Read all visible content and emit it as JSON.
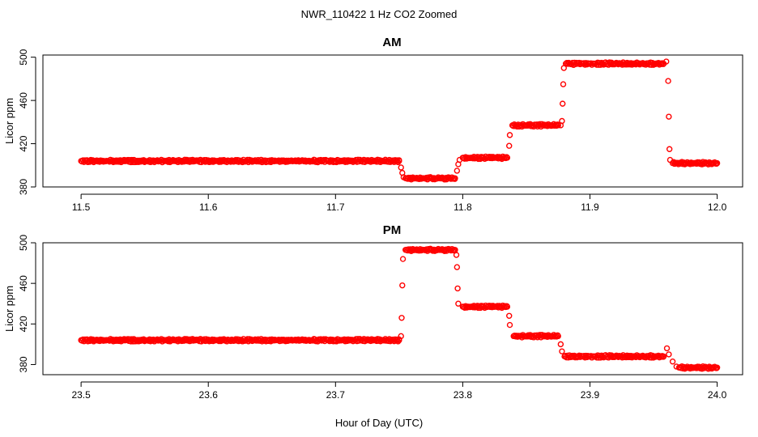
{
  "figure": {
    "suptitle": "NWR_110422  1 Hz CO2 Zoomed",
    "xlabel": "Hour of Day (UTC)"
  },
  "chart_data": [
    {
      "type": "scatter",
      "title": "AM",
      "ylabel": "Licor ppm",
      "xlim": [
        11.47,
        12.02
      ],
      "ylim": [
        380,
        502
      ],
      "xticks": [
        11.5,
        11.6,
        11.7,
        11.8,
        11.9,
        12.0
      ],
      "xtick_labels": [
        "11.5",
        "11.6",
        "11.7",
        "11.8",
        "11.9",
        "12.0"
      ],
      "yticks": [
        380,
        420,
        460,
        500
      ],
      "ytick_labels": [
        "380",
        "420",
        "460",
        "500"
      ],
      "marker_color": "#ff0000",
      "series": [
        {
          "name": "CO2",
          "points": [
            [
              11.5,
              404
            ],
            [
              11.51,
              404
            ],
            [
              11.52,
              404
            ],
            [
              11.53,
              404
            ],
            [
              11.54,
              404
            ],
            [
              11.55,
              404
            ],
            [
              11.56,
              404
            ],
            [
              11.57,
              404
            ],
            [
              11.58,
              404
            ],
            [
              11.59,
              404
            ],
            [
              11.6,
              404
            ],
            [
              11.61,
              404
            ],
            [
              11.62,
              404
            ],
            [
              11.63,
              404
            ],
            [
              11.64,
              404
            ],
            [
              11.65,
              404
            ],
            [
              11.66,
              404
            ],
            [
              11.67,
              404
            ],
            [
              11.68,
              404
            ],
            [
              11.69,
              404
            ],
            [
              11.7,
              404
            ],
            [
              11.71,
              404
            ],
            [
              11.72,
              404
            ],
            [
              11.73,
              404
            ],
            [
              11.74,
              404
            ],
            [
              11.75,
              404
            ],
            [
              11.7515,
              398
            ],
            [
              11.7525,
              393
            ],
            [
              11.7535,
              389
            ],
            [
              11.755,
              388
            ],
            [
              11.76,
              388
            ],
            [
              11.765,
              388
            ],
            [
              11.77,
              388
            ],
            [
              11.775,
              388
            ],
            [
              11.78,
              388
            ],
            [
              11.785,
              388
            ],
            [
              11.79,
              388
            ],
            [
              11.794,
              388
            ],
            [
              11.7955,
              395
            ],
            [
              11.7965,
              401
            ],
            [
              11.7975,
              405
            ],
            [
              11.8,
              407
            ],
            [
              11.805,
              407
            ],
            [
              11.81,
              407
            ],
            [
              11.815,
              407
            ],
            [
              11.82,
              407
            ],
            [
              11.825,
              407
            ],
            [
              11.83,
              407
            ],
            [
              11.835,
              407
            ],
            [
              11.8365,
              418
            ],
            [
              11.837,
              428
            ],
            [
              11.839,
              437
            ],
            [
              11.845,
              437
            ],
            [
              11.85,
              437
            ],
            [
              11.855,
              437
            ],
            [
              11.86,
              437
            ],
            [
              11.865,
              437
            ],
            [
              11.87,
              437
            ],
            [
              11.875,
              437
            ],
            [
              11.877,
              437
            ],
            [
              11.878,
              441
            ],
            [
              11.8785,
              457
            ],
            [
              11.879,
              475
            ],
            [
              11.8795,
              490
            ],
            [
              11.881,
              494
            ],
            [
              11.89,
              494
            ],
            [
              11.9,
              494
            ],
            [
              11.91,
              494
            ],
            [
              11.92,
              494
            ],
            [
              11.93,
              494
            ],
            [
              11.94,
              494
            ],
            [
              11.95,
              494
            ],
            [
              11.958,
              494
            ],
            [
              11.96,
              496
            ],
            [
              11.9615,
              478
            ],
            [
              11.962,
              445
            ],
            [
              11.9625,
              415
            ],
            [
              11.963,
              405
            ],
            [
              11.965,
              402
            ],
            [
              11.97,
              402
            ],
            [
              11.975,
              402
            ],
            [
              11.98,
              402
            ],
            [
              11.985,
              402
            ],
            [
              11.99,
              402
            ],
            [
              11.995,
              402
            ],
            [
              12.0,
              402
            ]
          ]
        }
      ]
    },
    {
      "type": "scatter",
      "title": "PM",
      "ylabel": "Licor ppm",
      "xlim": [
        23.47,
        24.02
      ],
      "ylim": [
        370,
        500
      ],
      "xticks": [
        23.5,
        23.6,
        23.7,
        23.8,
        23.9,
        24.0
      ],
      "xtick_labels": [
        "23.5",
        "23.6",
        "23.7",
        "23.8",
        "23.9",
        "24.0"
      ],
      "yticks": [
        380,
        420,
        460,
        500
      ],
      "ytick_labels": [
        "380",
        "420",
        "460",
        "500"
      ],
      "marker_color": "#ff0000",
      "series": [
        {
          "name": "CO2",
          "points": [
            [
              23.5,
              404
            ],
            [
              23.51,
              404
            ],
            [
              23.52,
              404
            ],
            [
              23.53,
              404
            ],
            [
              23.54,
              404
            ],
            [
              23.55,
              404
            ],
            [
              23.56,
              404
            ],
            [
              23.57,
              404
            ],
            [
              23.58,
              404
            ],
            [
              23.59,
              404
            ],
            [
              23.6,
              404
            ],
            [
              23.61,
              404
            ],
            [
              23.62,
              404
            ],
            [
              23.63,
              404
            ],
            [
              23.64,
              404
            ],
            [
              23.65,
              404
            ],
            [
              23.66,
              404
            ],
            [
              23.67,
              404
            ],
            [
              23.68,
              404
            ],
            [
              23.69,
              404
            ],
            [
              23.7,
              404
            ],
            [
              23.71,
              404
            ],
            [
              23.72,
              404
            ],
            [
              23.73,
              404
            ],
            [
              23.74,
              404
            ],
            [
              23.75,
              404
            ],
            [
              23.7515,
              408
            ],
            [
              23.752,
              426
            ],
            [
              23.7525,
              458
            ],
            [
              23.753,
              484
            ],
            [
              23.755,
              493
            ],
            [
              23.76,
              493
            ],
            [
              23.765,
              493
            ],
            [
              23.77,
              493
            ],
            [
              23.775,
              493
            ],
            [
              23.78,
              493
            ],
            [
              23.785,
              493
            ],
            [
              23.79,
              493
            ],
            [
              23.794,
              493
            ],
            [
              23.795,
              488
            ],
            [
              23.7955,
              476
            ],
            [
              23.796,
              455
            ],
            [
              23.7965,
              440
            ],
            [
              23.8,
              437
            ],
            [
              23.805,
              437
            ],
            [
              23.81,
              437
            ],
            [
              23.815,
              437
            ],
            [
              23.82,
              437
            ],
            [
              23.825,
              437
            ],
            [
              23.83,
              437
            ],
            [
              23.835,
              437
            ],
            [
              23.8365,
              428
            ],
            [
              23.837,
              419
            ],
            [
              23.84,
              408
            ],
            [
              23.845,
              408
            ],
            [
              23.85,
              408
            ],
            [
              23.855,
              408
            ],
            [
              23.86,
              408
            ],
            [
              23.865,
              408
            ],
            [
              23.87,
              408
            ],
            [
              23.875,
              408
            ],
            [
              23.877,
              400
            ],
            [
              23.878,
              393
            ],
            [
              23.88,
              388
            ],
            [
              23.89,
              388
            ],
            [
              23.9,
              388
            ],
            [
              23.91,
              388
            ],
            [
              23.92,
              388
            ],
            [
              23.93,
              388
            ],
            [
              23.94,
              388
            ],
            [
              23.95,
              388
            ],
            [
              23.958,
              388
            ],
            [
              23.9605,
              396
            ],
            [
              23.962,
              390
            ],
            [
              23.965,
              383
            ],
            [
              23.968,
              378
            ],
            [
              23.97,
              377
            ],
            [
              23.975,
              377
            ],
            [
              23.98,
              377
            ],
            [
              23.985,
              377
            ],
            [
              23.99,
              377
            ],
            [
              23.995,
              377
            ],
            [
              24.0,
              377
            ]
          ]
        }
      ]
    }
  ]
}
